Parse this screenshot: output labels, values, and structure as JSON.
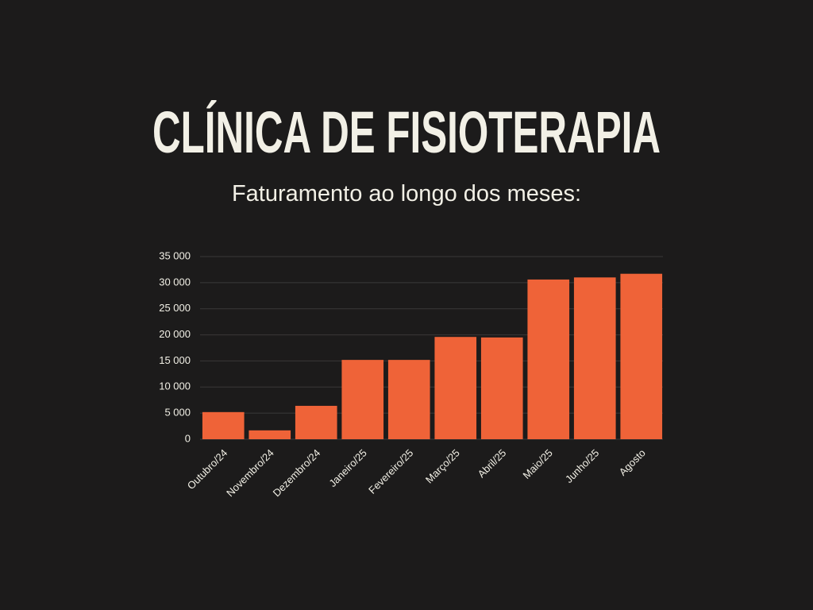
{
  "chart_data": {
    "type": "bar",
    "title": "CLÍNICA DE FISIOTERAPIA",
    "subtitle": "Faturamento ao longo dos meses:",
    "categories": [
      "Outubro/24",
      "Novembro/24",
      "Dezembro/24",
      "Janeiro/25",
      "Fevereiro/25",
      "Março/25",
      "Abril/25",
      "Maio/25",
      "Junho/25",
      "Agosto"
    ],
    "values": [
      5200,
      1700,
      6400,
      15200,
      15200,
      19600,
      19500,
      30600,
      31000,
      31700
    ],
    "color": "#ef6338",
    "ylim": [
      0,
      35000
    ],
    "yticks": [
      0,
      {
        "value": 5000,
        "label": "5 000"
      },
      {
        "value": 10000,
        "label": "10 000"
      },
      {
        "value": 15000,
        "label": "15 000"
      },
      {
        "value": 20000,
        "label": "20 000"
      },
      {
        "value": 25000,
        "label": "25 000"
      },
      {
        "value": 30000,
        "label": "30 000"
      },
      {
        "value": 35000,
        "label": "35 000"
      }
    ],
    "grid": true
  }
}
